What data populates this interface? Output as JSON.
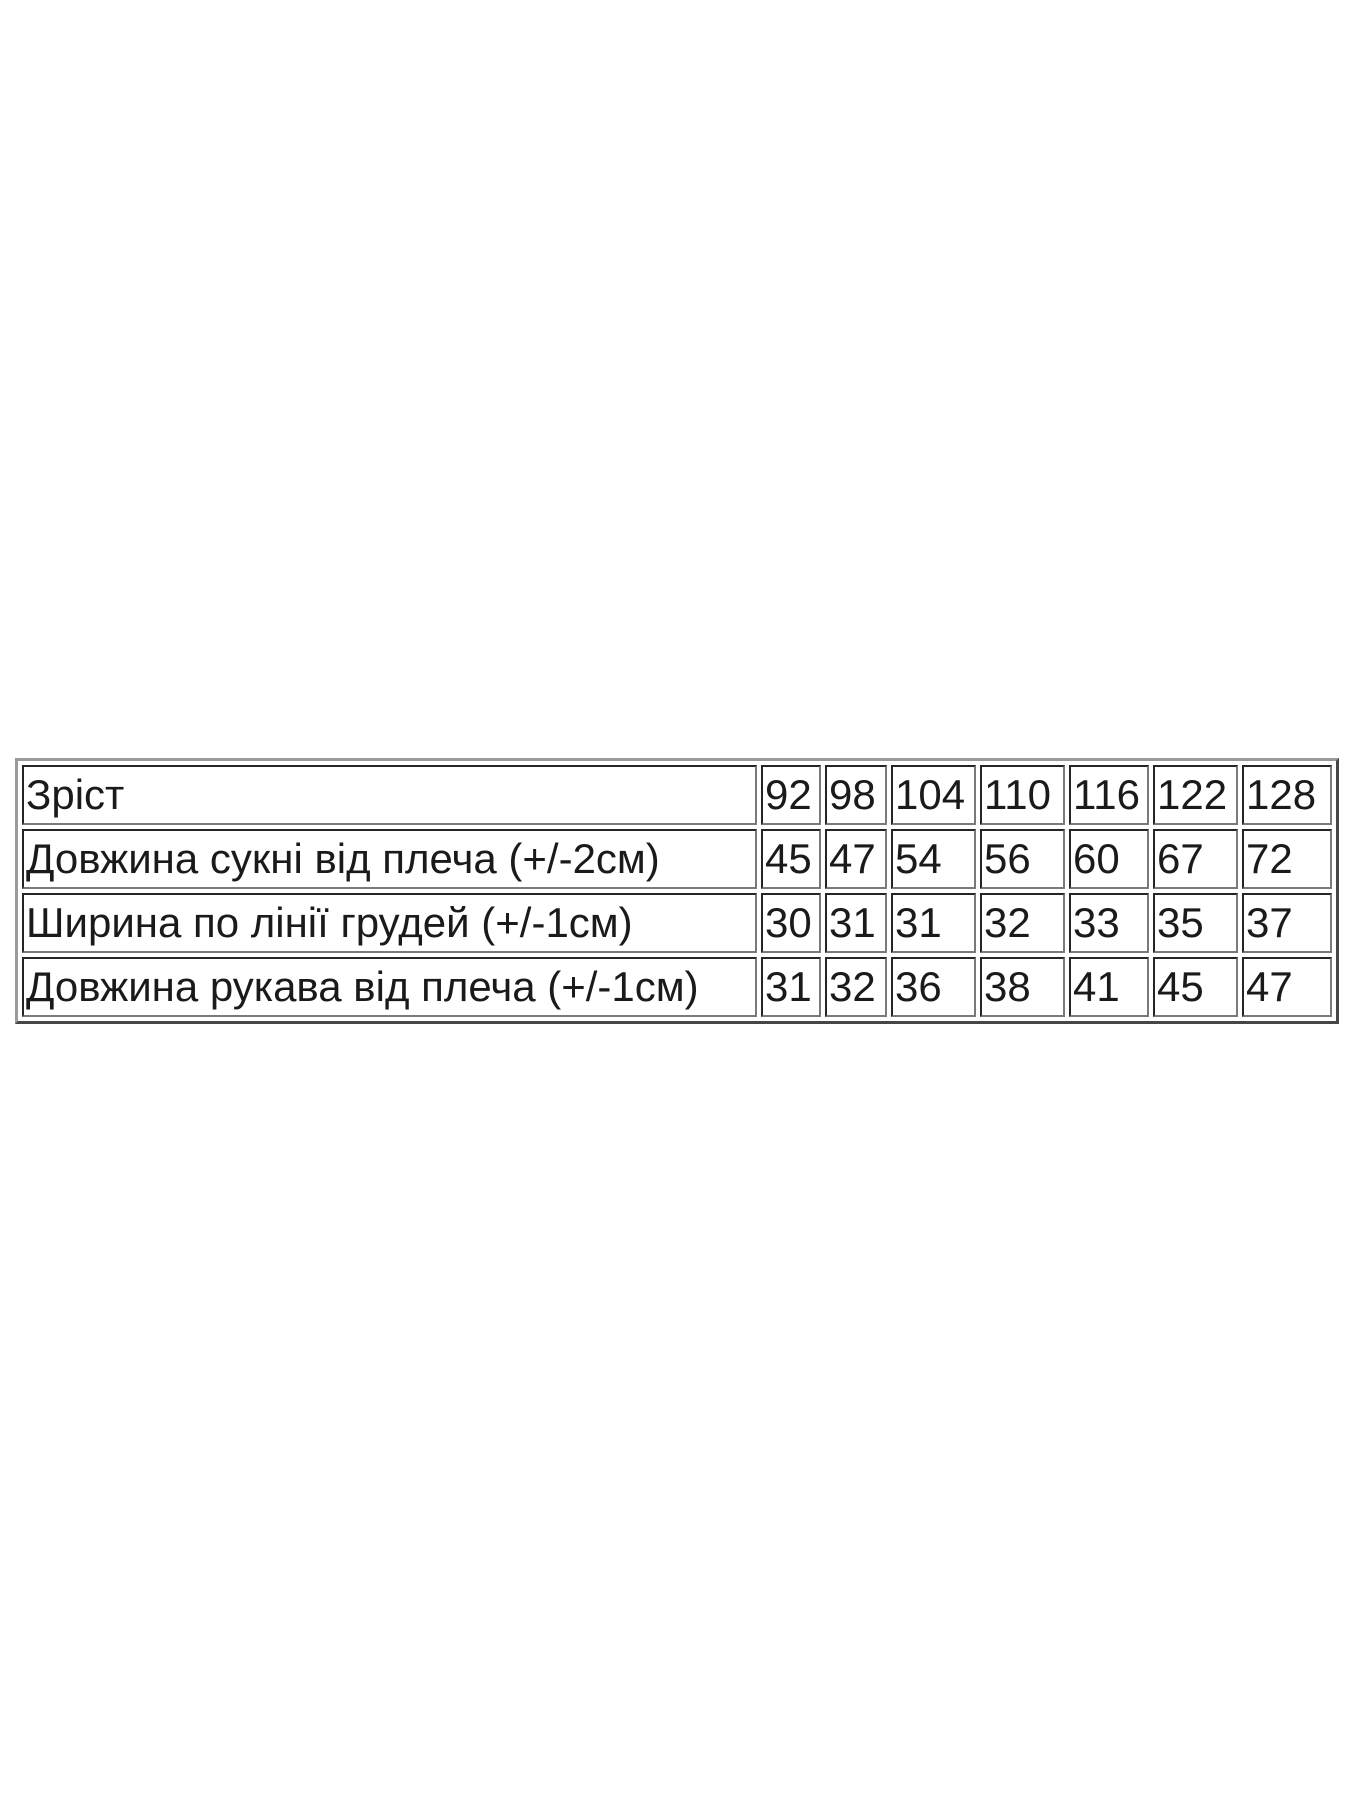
{
  "size_table": {
    "header": {
      "label": "Зріст",
      "values": [
        "92",
        "98",
        "104",
        "110",
        "116",
        "122",
        "128"
      ]
    },
    "rows": [
      {
        "label": "Довжина сукні від плеча (+/-2см)",
        "values": [
          "45",
          "47",
          "54",
          "56",
          "60",
          "67",
          "72"
        ]
      },
      {
        "label": "Ширина по лінії грудей (+/-1см)",
        "values": [
          "30",
          "31",
          "31",
          "32",
          "33",
          "35",
          "37"
        ]
      },
      {
        "label": "Довжина рукава від плеча (+/-1см)",
        "values": [
          "31",
          "32",
          "36",
          "38",
          "41",
          "45",
          "47"
        ]
      }
    ]
  }
}
